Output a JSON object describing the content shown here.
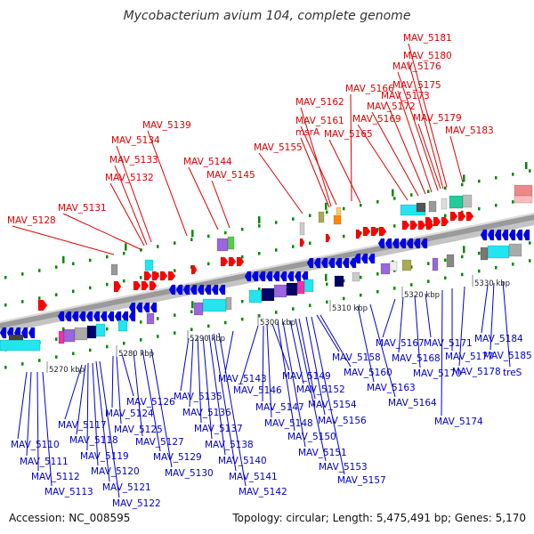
{
  "title": "Mycobacterium avium 104, complete genome",
  "footer": {
    "accession": "Accession: NC_008595",
    "summary": "Topology: circular; Length: 5,475,491 bp; Genes: 5,170"
  },
  "colors": {
    "forward_label": "#dd0000",
    "reverse_label": "#0000cc",
    "forward_gene": "#ff0000",
    "reverse_gene": "#0000ee",
    "backbone": "#888888",
    "tick": "#008800",
    "cyan": "#22e5f0",
    "purple": "#9966dd",
    "gray": "#999999",
    "navy": "#000066",
    "magenta": "#ee33aa",
    "olive": "#aaaa55",
    "teal": "#22cc99",
    "pink": "#ee8888",
    "orange": "#ff8800",
    "green": "#55cc44"
  },
  "scale_labels": [
    "5270 kbp",
    "5280 kbp",
    "5290 kbp",
    "5300 kbp",
    "5310 kbp",
    "5320 kbp",
    "5330 kbp"
  ],
  "forward_labels": [
    "MAV_5128",
    "MAV_5131",
    "MAV_5132",
    "MAV_5133",
    "MAV_5134",
    "MAV_5139",
    "MAV_5144",
    "MAV_5145",
    "MAV_5155",
    "MAV_5161",
    "msrA",
    "MAV_5162",
    "MAV_5165",
    "MAV_5166",
    "MAV_5169",
    "MAV_5172",
    "MAV_5173",
    "MAV_5175",
    "MAV_5176",
    "MAV_5180",
    "MAV_5181",
    "MAV_5179",
    "MAV_5183"
  ],
  "reverse_labels": [
    "MAV_5110",
    "MAV_5111",
    "MAV_5112",
    "MAV_5113",
    "MAV_5117",
    "MAV_5118",
    "MAV_5119",
    "MAV_5120",
    "MAV_5121",
    "MAV_5122",
    "MAV_5124",
    "MAV_5125",
    "MAV_5126",
    "MAV_5127",
    "MAV_5129",
    "MAV_5130",
    "MAV_5135",
    "MAV_5136",
    "MAV_5137",
    "MAV_5138",
    "MAV_5140",
    "MAV_5141",
    "MAV_5142",
    "MAV_5143",
    "MAV_5146",
    "MAV_5147",
    "MAV_5148",
    "MAV_5149",
    "MAV_5150",
    "MAV_5151",
    "MAV_5152",
    "MAV_5153",
    "MAV_5154",
    "MAV_5156",
    "MAV_5157",
    "MAV_5158",
    "MAV_5160",
    "MAV_5163",
    "MAV_5164",
    "MAV_5167",
    "MAV_5168",
    "MAV_5170",
    "MAV_5171",
    "MAV_5174",
    "MAV_5177",
    "MAV_5178",
    "MAV_5184",
    "MAV_5185",
    "treS"
  ]
}
